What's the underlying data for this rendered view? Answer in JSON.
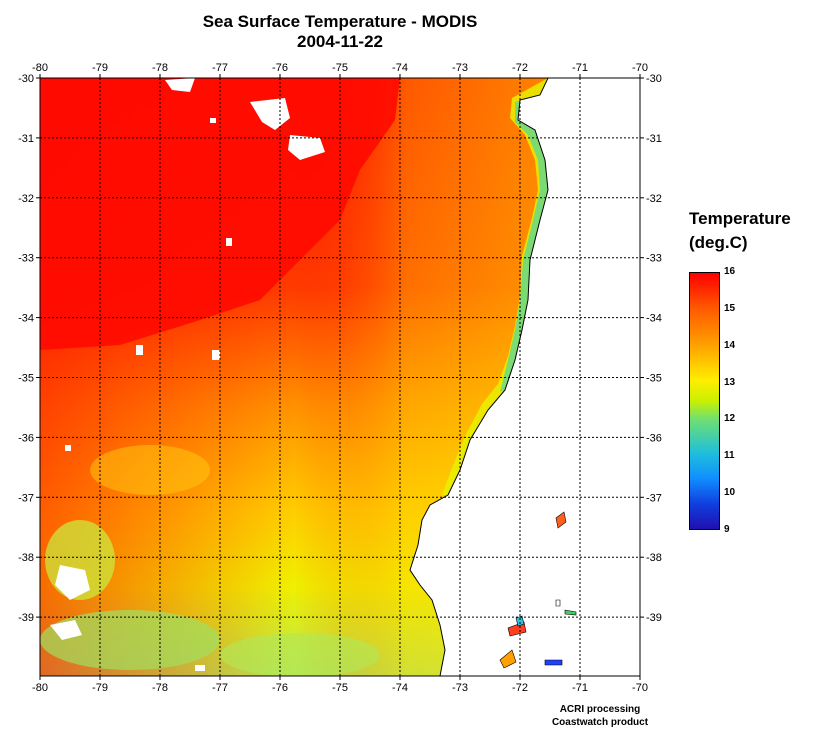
{
  "title": "Sea Surface Temperature - MODIS",
  "date": "2004-11-22",
  "map": {
    "lon_ticks": [
      "-80",
      "-79",
      "-78",
      "-77",
      "-76",
      "-75",
      "-74",
      "-73",
      "-72",
      "-71",
      "-70"
    ],
    "lat_ticks": [
      "-30",
      "-31",
      "-32",
      "-33",
      "-34",
      "-35",
      "-36",
      "-37",
      "-38",
      "-39"
    ],
    "lon_range": [
      -80,
      -70
    ],
    "lat_range": [
      -30,
      -40
    ],
    "grid": "dotted",
    "colors": {
      "land": "#ffffff",
      "cloud": "#ffffff",
      "coast": "#000000"
    }
  },
  "legend": {
    "title_line1": "Temperature",
    "title_line2": "(deg.C)",
    "ticks": [
      "16",
      "15",
      "14",
      "13",
      "12",
      "11",
      "10",
      "9"
    ],
    "range": [
      9,
      16
    ]
  },
  "credits": {
    "line1": "ACRI processing",
    "line2": "Coastwatch product"
  }
}
